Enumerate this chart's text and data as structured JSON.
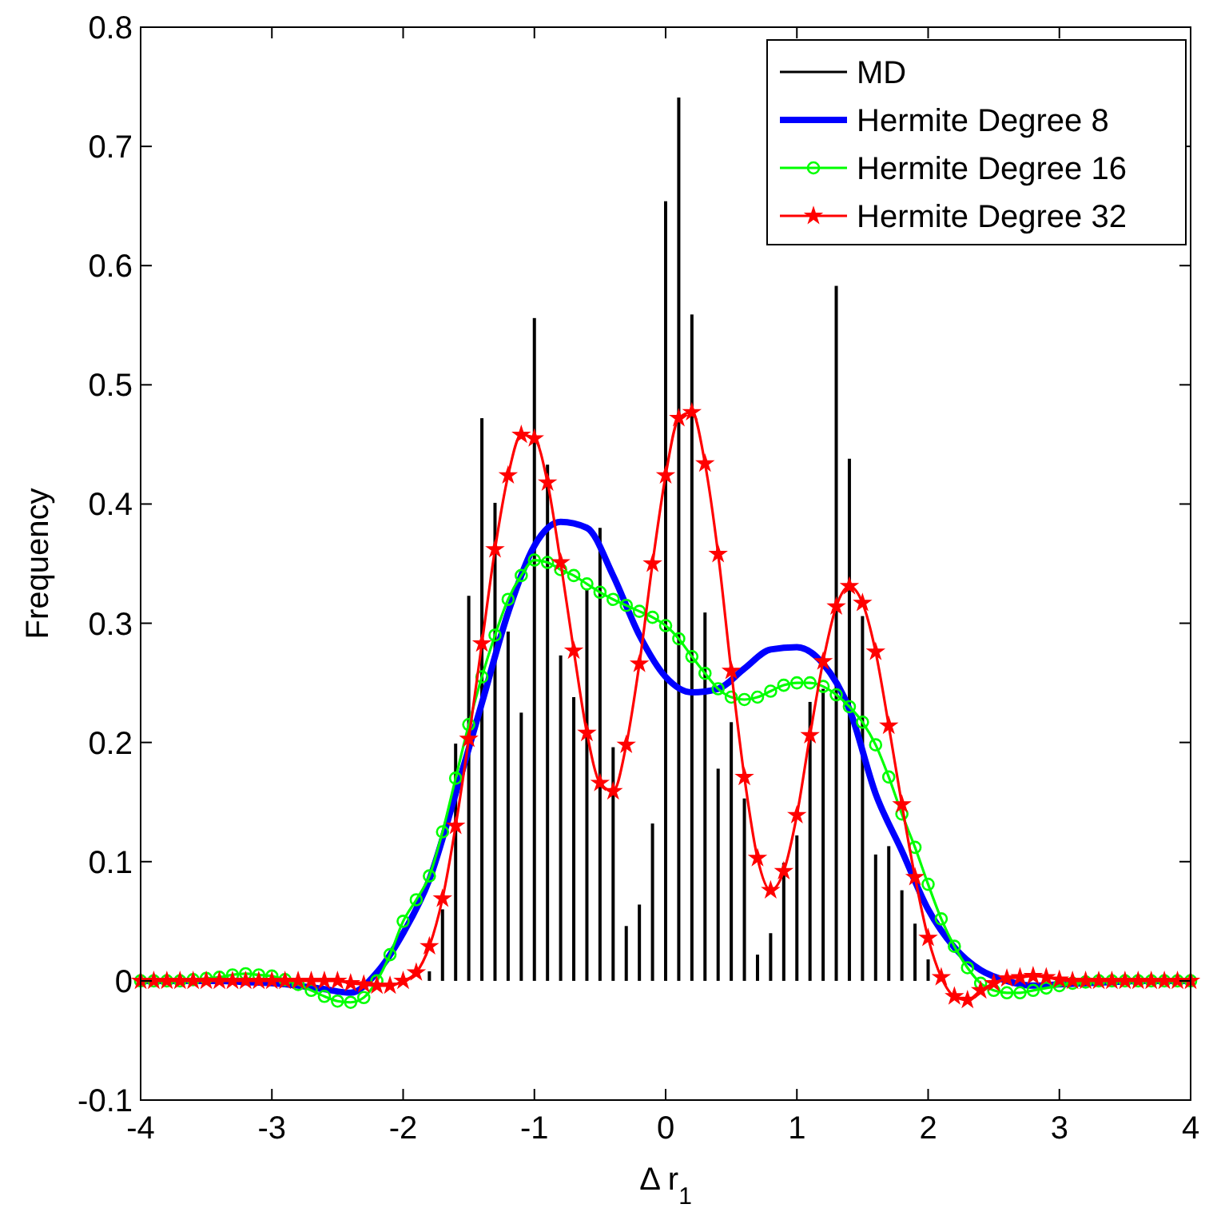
{
  "chart_data": {
    "type": "line",
    "xlabel": "Δ r$_{1}$",
    "ylabel": "Frequency",
    "xlim": [
      -4,
      4
    ],
    "xticks": [
      -4,
      -3,
      -2,
      -1,
      0,
      1,
      2,
      3,
      4
    ],
    "ylim": [
      -0.1,
      0.8
    ],
    "yticks": [
      -0.1,
      0,
      0.1,
      0.2,
      0.3,
      0.4,
      0.5,
      0.6,
      0.7,
      0.8
    ],
    "grid": false,
    "legend": "top right",
    "x": [
      -4,
      -3.9,
      -3.8,
      -3.7,
      -3.6,
      -3.5,
      -3.4,
      -3.3,
      -3.2,
      -3.1,
      -3,
      -2.9,
      -2.8,
      -2.7,
      -2.6,
      -2.5,
      -2.4,
      -2.3,
      -2.2,
      -2.1,
      -2,
      -1.9,
      -1.8,
      -1.7,
      -1.6,
      -1.5,
      -1.4,
      -1.3,
      -1.2,
      -1.1,
      -1,
      -0.9,
      -0.8,
      -0.7,
      -0.6,
      -0.5,
      -0.4,
      -0.3,
      -0.2,
      -0.1,
      0,
      0.1,
      0.2,
      0.3,
      0.4,
      0.5,
      0.6,
      0.7,
      0.8,
      0.9,
      1,
      1.1,
      1.2,
      1.3,
      1.4,
      1.5,
      1.6,
      1.7,
      1.8,
      1.9,
      2,
      2.1,
      2.2,
      2.3,
      2.4,
      2.5,
      2.6,
      2.7,
      2.8,
      2.9,
      3,
      3.1,
      3.2,
      3.3,
      3.4,
      3.5,
      3.6,
      3.7,
      3.8,
      3.9,
      4
    ],
    "series": [
      {
        "name": "MD",
        "type": "bar",
        "color": "#000000",
        "x": [
          -1.8,
          -1.7,
          -1.6,
          -1.5,
          -1.4,
          -1.3,
          -1.2,
          -1.1,
          -1,
          -0.9,
          -0.8,
          -0.7,
          -0.6,
          -0.5,
          -0.4,
          -0.3,
          -0.2,
          -0.1,
          0,
          0.1,
          0.2,
          0.3,
          0.4,
          0.5,
          0.6,
          0.7,
          0.8,
          0.9,
          1,
          1.1,
          1.2,
          1.3,
          1.4,
          1.5,
          1.6,
          1.7,
          1.8,
          1.9,
          2
        ],
        "values": [
          0.008,
          0.06,
          0.199,
          0.323,
          0.472,
          0.401,
          0.293,
          0.225,
          0.556,
          0.433,
          0.273,
          0.238,
          0.329,
          0.38,
          0.196,
          0.046,
          0.064,
          0.132,
          0.654,
          0.741,
          0.559,
          0.309,
          0.178,
          0.217,
          0.153,
          0.022,
          0.04,
          0.099,
          0.122,
          0.234,
          0.245,
          0.583,
          0.438,
          0.306,
          0.106,
          0.113,
          0.076,
          0.048,
          0.018
        ]
      },
      {
        "name": "Hermite Degree 8",
        "color": "#0000ff",
        "marker": "none",
        "x": [
          -4,
          -3.8,
          -3.6,
          -3.4,
          -3.2,
          -3,
          -2.8,
          -2.6,
          -2.4,
          -2.2,
          -2,
          -1.8,
          -1.6,
          -1.4,
          -1.2,
          -1,
          -0.8,
          -0.6,
          -0.4,
          -0.2,
          0,
          0.2,
          0.4,
          0.6,
          0.8,
          1,
          1.2,
          1.4,
          1.6,
          1.8,
          2,
          2.2,
          2.4,
          2.6,
          2.8,
          3,
          3.2,
          3.4,
          3.6,
          3.8,
          4
        ],
        "values": [
          0,
          0,
          0,
          0,
          -0.001,
          -0.002,
          -0.004,
          -0.007,
          -0.01,
          0.007,
          0.04,
          0.085,
          0.157,
          0.233,
          0.309,
          0.365,
          0.385,
          0.38,
          0.34,
          0.29,
          0.255,
          0.242,
          0.245,
          0.262,
          0.278,
          0.28,
          0.266,
          0.228,
          0.157,
          0.109,
          0.06,
          0.028,
          0.009,
          0,
          -0.004,
          -0.003,
          -0.002,
          -0.001,
          0,
          0,
          0
        ]
      },
      {
        "name": "Hermite Degree 16",
        "color": "#00ff00",
        "marker": "circle",
        "values": [
          0,
          0,
          0,
          0,
          0.001,
          0.002,
          0.003,
          0.005,
          0.006,
          0.005,
          0.004,
          0.001,
          -0.003,
          -0.008,
          -0.013,
          -0.017,
          -0.018,
          -0.014,
          0,
          0.022,
          0.05,
          0.068,
          0.088,
          0.125,
          0.17,
          0.215,
          0.255,
          0.29,
          0.32,
          0.34,
          0.353,
          0.351,
          0.345,
          0.34,
          0.333,
          0.326,
          0.32,
          0.315,
          0.31,
          0.305,
          0.298,
          0.287,
          0.272,
          0.258,
          0.245,
          0.238,
          0.236,
          0.238,
          0.243,
          0.248,
          0.25,
          0.25,
          0.247,
          0.24,
          0.23,
          0.217,
          0.198,
          0.171,
          0.14,
          0.112,
          0.081,
          0.052,
          0.029,
          0.011,
          -0.002,
          -0.008,
          -0.01,
          -0.01,
          -0.008,
          -0.006,
          -0.004,
          -0.002,
          -0.001,
          0,
          0,
          0,
          0,
          0,
          0,
          0,
          0
        ]
      },
      {
        "name": "Hermite Degree 32",
        "color": "#ff0000",
        "marker": "star",
        "values": [
          0,
          0,
          0,
          0,
          0,
          0,
          0,
          0,
          0,
          0,
          0,
          0,
          0,
          0,
          0,
          0,
          -0.002,
          -0.003,
          -0.004,
          -0.004,
          0,
          0.007,
          0.029,
          0.069,
          0.13,
          0.203,
          0.283,
          0.362,
          0.424,
          0.458,
          0.455,
          0.418,
          0.351,
          0.277,
          0.208,
          0.166,
          0.159,
          0.198,
          0.266,
          0.35,
          0.424,
          0.472,
          0.477,
          0.434,
          0.358,
          0.26,
          0.171,
          0.103,
          0.076,
          0.092,
          0.139,
          0.206,
          0.268,
          0.314,
          0.331,
          0.317,
          0.276,
          0.214,
          0.148,
          0.087,
          0.036,
          0.003,
          -0.013,
          -0.016,
          -0.008,
          -0.002,
          0.002,
          0.003,
          0.004,
          0.003,
          0.001,
          0,
          0,
          0,
          0,
          0,
          0,
          0,
          0,
          0,
          0
        ]
      }
    ]
  }
}
